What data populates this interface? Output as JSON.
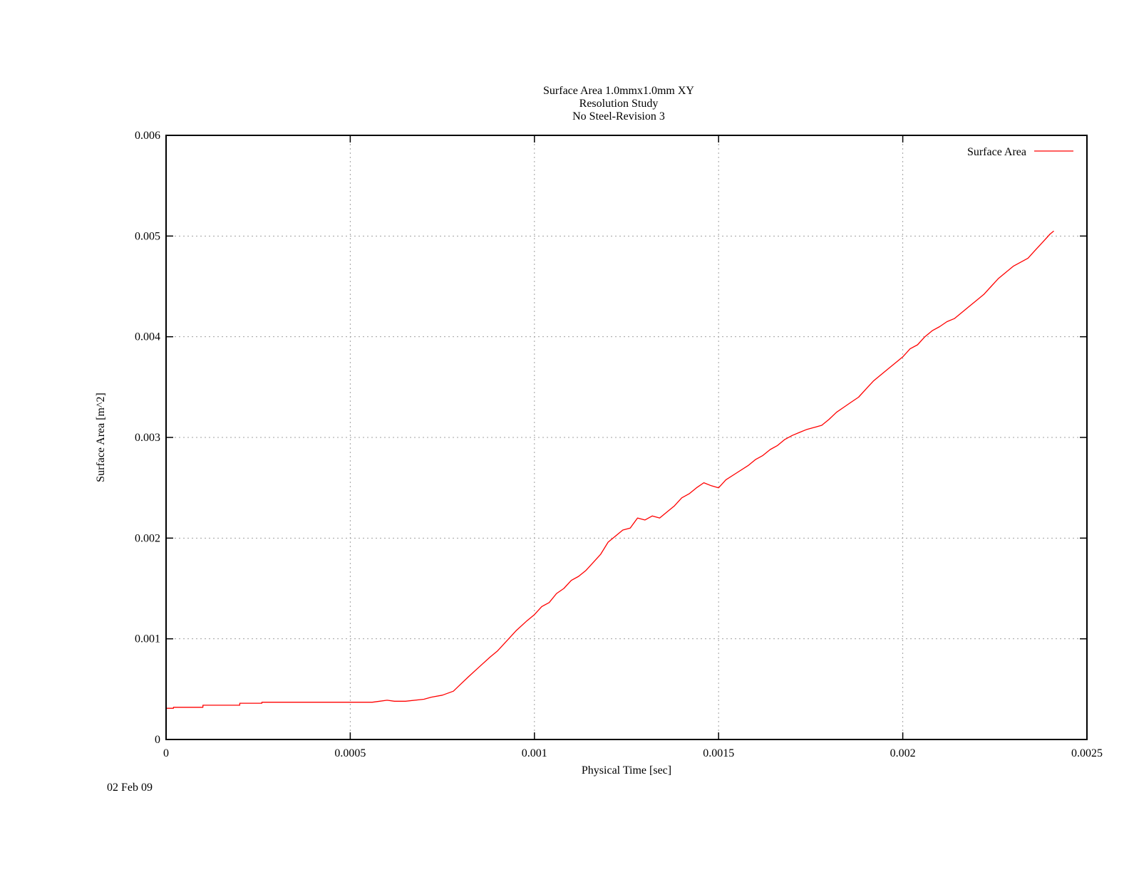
{
  "footer_date": "02 Feb 09",
  "chart_data": {
    "type": "line",
    "title_lines": [
      "Surface Area 1.0mmx1.0mm XY",
      "Resolution Study",
      "No Steel-Revision 3"
    ],
    "xlabel": "Physical Time [sec]",
    "ylabel": "Surface Area [m^2]",
    "xlim": [
      0,
      0.0025
    ],
    "ylim": [
      0,
      0.006
    ],
    "xticks": [
      0,
      0.0005,
      0.001,
      0.0015,
      0.002,
      0.0025
    ],
    "xtick_labels": [
      "0",
      "0.0005",
      "0.001",
      "0.0015",
      "0.002",
      "0.0025"
    ],
    "yticks": [
      0,
      0.001,
      0.002,
      0.003,
      0.004,
      0.005,
      0.006
    ],
    "ytick_labels": [
      "0",
      "0.001",
      "0.002",
      "0.003",
      "0.004",
      "0.005",
      "0.006"
    ],
    "grid": true,
    "legend_position": "top-right",
    "colors": {
      "series": "#ff0000",
      "xlabel": "#00ff00",
      "ylabel": "#ff0000",
      "axes": "#000000",
      "grid": "#a0a0a0"
    },
    "series": [
      {
        "name": "Surface Area",
        "x": [
          0,
          2e-05,
          2.01e-05,
          0.0001,
          0.0001001,
          0.0002,
          0.0002001,
          0.00026,
          0.0002601,
          0.00056,
          0.00058,
          0.0006,
          0.00062,
          0.00065,
          0.0007,
          0.00072,
          0.00075,
          0.00078,
          0.0008,
          0.00082,
          0.00085,
          0.00088,
          0.0009,
          0.00092,
          0.00095,
          0.00098,
          0.001,
          0.00102,
          0.00104,
          0.00106,
          0.00108,
          0.0011,
          0.00112,
          0.00114,
          0.00116,
          0.00118,
          0.0012,
          0.00122,
          0.00124,
          0.00126,
          0.00128,
          0.0013,
          0.00132,
          0.00134,
          0.00136,
          0.00138,
          0.0014,
          0.00142,
          0.00144,
          0.00146,
          0.00148,
          0.0015,
          0.00152,
          0.00155,
          0.00158,
          0.0016,
          0.00162,
          0.00164,
          0.00166,
          0.00168,
          0.0017,
          0.00172,
          0.00174,
          0.00176,
          0.00178,
          0.0018,
          0.00182,
          0.00184,
          0.00186,
          0.00188,
          0.0019,
          0.00192,
          0.00194,
          0.00196,
          0.00198,
          0.002,
          0.00202,
          0.00204,
          0.00206,
          0.00208,
          0.0021,
          0.00212,
          0.00214,
          0.00216,
          0.00218,
          0.0022,
          0.00222,
          0.00224,
          0.00226,
          0.00228,
          0.0023,
          0.00232,
          0.00234,
          0.00236,
          0.00238,
          0.0024,
          0.00241
        ],
        "y": [
          0.00031,
          0.00031,
          0.00032,
          0.00032,
          0.00034,
          0.00034,
          0.00036,
          0.00036,
          0.00037,
          0.00037,
          0.00038,
          0.00039,
          0.00038,
          0.00038,
          0.0004,
          0.00042,
          0.00044,
          0.00048,
          0.00055,
          0.00062,
          0.00072,
          0.00082,
          0.00088,
          0.00096,
          0.00108,
          0.00118,
          0.00124,
          0.00132,
          0.00136,
          0.00145,
          0.0015,
          0.00158,
          0.00162,
          0.00168,
          0.00176,
          0.00184,
          0.00196,
          0.00202,
          0.00208,
          0.0021,
          0.0022,
          0.00218,
          0.00222,
          0.0022,
          0.00226,
          0.00232,
          0.0024,
          0.00244,
          0.0025,
          0.00255,
          0.00252,
          0.0025,
          0.00258,
          0.00265,
          0.00272,
          0.00278,
          0.00282,
          0.00288,
          0.00292,
          0.00298,
          0.00302,
          0.00305,
          0.00308,
          0.0031,
          0.00312,
          0.00318,
          0.00325,
          0.0033,
          0.00335,
          0.0034,
          0.00348,
          0.00356,
          0.00362,
          0.00368,
          0.00374,
          0.0038,
          0.00388,
          0.00392,
          0.004,
          0.00406,
          0.0041,
          0.00415,
          0.00418,
          0.00424,
          0.0043,
          0.00436,
          0.00442,
          0.0045,
          0.00458,
          0.00464,
          0.0047,
          0.00474,
          0.00478,
          0.00486,
          0.00494,
          0.00502,
          0.00505
        ]
      }
    ]
  }
}
